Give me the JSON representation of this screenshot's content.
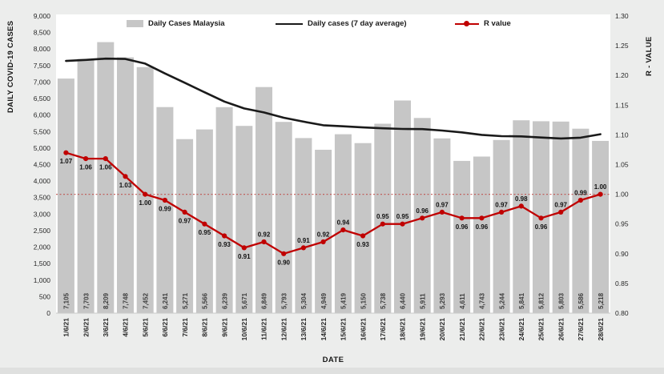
{
  "page": {
    "background": "#ecedec",
    "plot_background": "#ffffff"
  },
  "chart_data": {
    "type": "bar",
    "combo": true,
    "title": "",
    "x_axis_label": "DATE",
    "y_left_label": "DAILY COVID-19 CASES",
    "y_right_label": "R - VALUE",
    "y_left_range": [
      0,
      9000
    ],
    "y_left_step": 500,
    "y_right_range": [
      0.8,
      1.3
    ],
    "y_right_step": 0.05,
    "grid": "off",
    "legend_position": "top-inside",
    "categories": [
      "1/6/21",
      "2/6/21",
      "3/6/21",
      "4/6/21",
      "5/6/21",
      "6/6/21",
      "7/6/21",
      "8/6/21",
      "9/6/21",
      "10/6/21",
      "11/6/21",
      "12/6/21",
      "13/6/21",
      "14/6/21",
      "15/6/21",
      "16/6/21",
      "17/6/21",
      "18/6/21",
      "19/6/21",
      "20/6/21",
      "21/6/21",
      "22/6/21",
      "23/6/21",
      "24/6/21",
      "25/6/21",
      "26/6/21",
      "27/6/21",
      "28/6/21"
    ],
    "series": [
      {
        "name": "Daily Cases Malaysia",
        "type": "bar",
        "axis": "left",
        "color": "#c6c6c6",
        "values": [
          7105,
          7703,
          8209,
          7748,
          7452,
          6241,
          5271,
          5566,
          6239,
          5671,
          6849,
          5793,
          5304,
          4949,
          5419,
          5150,
          5738,
          6440,
          5911,
          5293,
          4611,
          4743,
          5244,
          5841,
          5812,
          5803,
          5586,
          5218
        ]
      },
      {
        "name": "Daily cases (7 day average)",
        "type": "line",
        "axis": "left",
        "color": "#1a1a1a",
        "values_estimated": true,
        "values": [
          7640,
          7670,
          7710,
          7700,
          7560,
          7260,
          6980,
          6690,
          6410,
          6200,
          6080,
          5920,
          5800,
          5690,
          5660,
          5625,
          5600,
          5580,
          5575,
          5530,
          5475,
          5400,
          5360,
          5355,
          5320,
          5290,
          5315,
          5420
        ]
      },
      {
        "name": "R value",
        "type": "line-marker",
        "axis": "right",
        "color": "#c00000",
        "values": [
          1.07,
          1.06,
          1.06,
          1.03,
          1.0,
          0.99,
          0.97,
          0.95,
          0.93,
          0.91,
          0.92,
          0.9,
          0.91,
          0.92,
          0.94,
          0.93,
          0.95,
          0.95,
          0.96,
          0.97,
          0.96,
          0.96,
          0.97,
          0.98,
          0.96,
          0.97,
          0.99,
          1.0
        ],
        "label_positions": [
          "below",
          "below",
          "below",
          "below",
          "below",
          "below",
          "below",
          "below",
          "below",
          "below",
          "above",
          "below",
          "above",
          "above",
          "above",
          "below",
          "above",
          "above",
          "above",
          "above",
          "below",
          "below",
          "above",
          "above",
          "below",
          "above",
          "above",
          "above"
        ]
      }
    ],
    "reference_line": {
      "axis": "right",
      "value": 1.0,
      "color": "#c0504d",
      "style": "dotted"
    }
  }
}
